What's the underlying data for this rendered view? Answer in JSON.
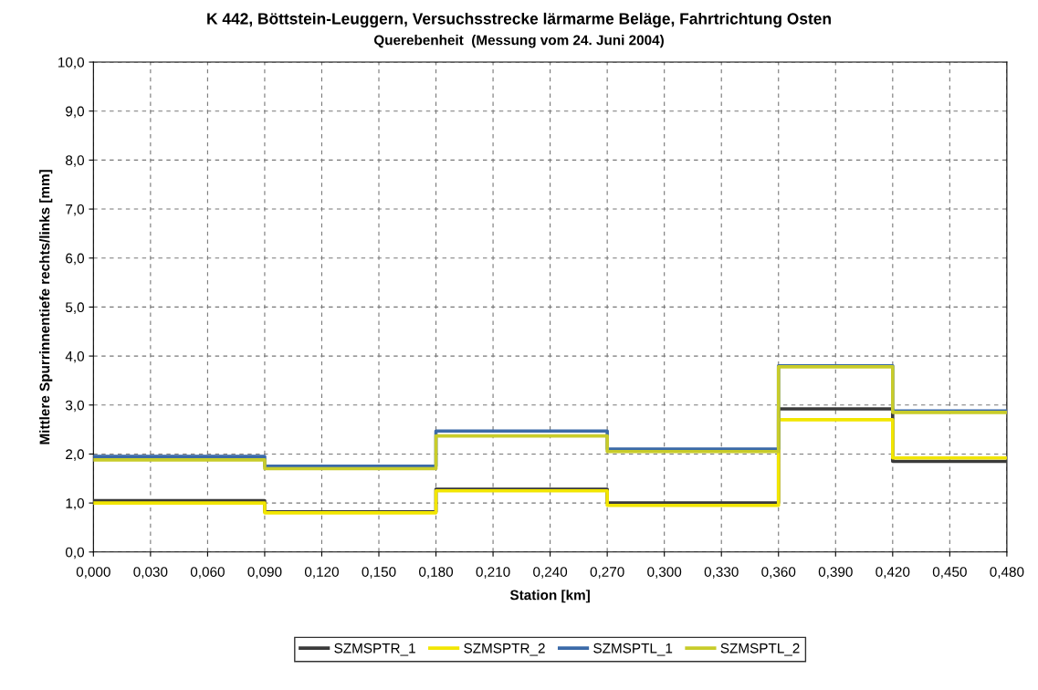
{
  "chart_data": {
    "type": "step",
    "title": "K 442, Böttstein-Leuggern, Versuchsstrecke lärmarme Beläge, Fahrtrichtung Osten",
    "subtitle": "Querebenheit  (Messung vom 24. Juni 2004)",
    "xlabel": "Station [km]",
    "ylabel": "Mittlere Spurrinnentiefe rechts/links [mm]",
    "x": [
      0,
      0.09,
      0.18,
      0.27,
      0.36,
      0.42,
      0.48
    ],
    "series": [
      {
        "name": "SZMSPTR_1",
        "color": "#3a3a3a",
        "values": [
          1.05,
          0.82,
          1.28,
          1.0,
          2.92,
          1.85,
          1.85
        ]
      },
      {
        "name": "SZMSPTR_2",
        "color": "#f2e600",
        "values": [
          1.0,
          0.8,
          1.25,
          0.95,
          2.7,
          1.92,
          1.92
        ]
      },
      {
        "name": "SZMSPTL_1",
        "color": "#3b6aa8",
        "values": [
          1.95,
          1.75,
          2.47,
          2.1,
          3.8,
          2.88,
          2.88
        ]
      },
      {
        "name": "SZMSPTL_2",
        "color": "#c8cc2a",
        "values": [
          1.88,
          1.7,
          2.37,
          2.05,
          3.78,
          2.85,
          2.85
        ]
      }
    ],
    "xlim": [
      0,
      0.48
    ],
    "xticks": [
      {
        "value": 0,
        "label": "0,000"
      },
      {
        "value": 0.03,
        "label": "0,030"
      },
      {
        "value": 0.06,
        "label": "0,060"
      },
      {
        "value": 0.09,
        "label": "0,090"
      },
      {
        "value": 0.12,
        "label": "0,120"
      },
      {
        "value": 0.15,
        "label": "0,150"
      },
      {
        "value": 0.18,
        "label": "0,180"
      },
      {
        "value": 0.21,
        "label": "0,210"
      },
      {
        "value": 0.24,
        "label": "0,240"
      },
      {
        "value": 0.27,
        "label": "0,270"
      },
      {
        "value": 0.3,
        "label": "0,300"
      },
      {
        "value": 0.33,
        "label": "0,330"
      },
      {
        "value": 0.36,
        "label": "0,360"
      },
      {
        "value": 0.39,
        "label": "0,390"
      },
      {
        "value": 0.42,
        "label": "0,420"
      },
      {
        "value": 0.45,
        "label": "0,450"
      },
      {
        "value": 0.48,
        "label": "0,480"
      }
    ],
    "ylim": [
      0,
      10
    ],
    "yticks": [
      {
        "value": 0,
        "label": "0,0"
      },
      {
        "value": 1,
        "label": "1,0"
      },
      {
        "value": 2,
        "label": "2,0"
      },
      {
        "value": 3,
        "label": "3,0"
      },
      {
        "value": 4,
        "label": "4,0"
      },
      {
        "value": 5,
        "label": "5,0"
      },
      {
        "value": 6,
        "label": "6,0"
      },
      {
        "value": 7,
        "label": "7,0"
      },
      {
        "value": 8,
        "label": "8,0"
      },
      {
        "value": 9,
        "label": "9,0"
      },
      {
        "value": 10,
        "label": "10,0"
      }
    ],
    "grid": true,
    "legend": "bottom",
    "marker": "none",
    "line_style": "solid"
  }
}
